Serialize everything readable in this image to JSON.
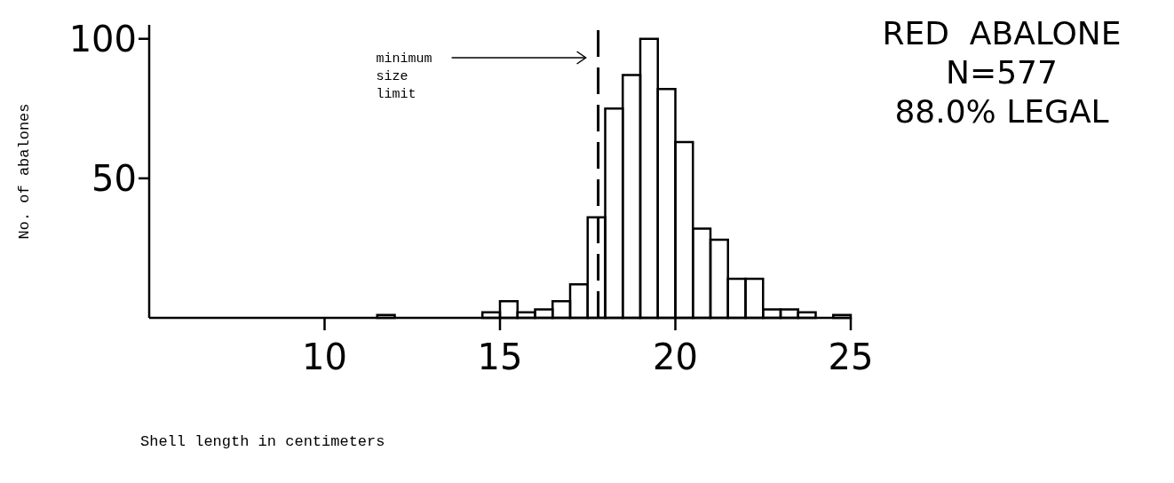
{
  "chart_data": {
    "type": "histogram",
    "title": "RED  ABALONE",
    "xlabel": "Shell length in centimeters",
    "ylabel": "No. of abalones",
    "annotations": [
      "N=577",
      "88.0% LEGAL"
    ],
    "bins": [
      11.5,
      12,
      12.5,
      13,
      13.5,
      14,
      14.5,
      15,
      15.5,
      16,
      16.5,
      17,
      17.5,
      18,
      18.5,
      19,
      19.5,
      20,
      20.5,
      21,
      21.5,
      22,
      22.5,
      23,
      23.5,
      24,
      24.5,
      25
    ],
    "values": [
      1,
      0,
      0,
      0,
      0,
      0,
      2,
      6,
      2,
      3,
      6,
      12,
      36,
      75,
      87,
      100,
      82,
      63,
      32,
      28,
      14,
      14,
      3,
      3,
      2,
      0,
      1
    ],
    "color": "#000000",
    "xlim": [
      5,
      25
    ],
    "xticks": [
      10,
      15,
      20,
      25
    ],
    "ylim": [
      0,
      105
    ],
    "yticks": [
      50,
      100
    ],
    "ref_lines": [
      {
        "axis": "x",
        "value": 17.8,
        "label": "minimum\nsize\nlimit",
        "color": "#000000",
        "line_style": "dashed"
      }
    ],
    "line_style": "solid"
  }
}
